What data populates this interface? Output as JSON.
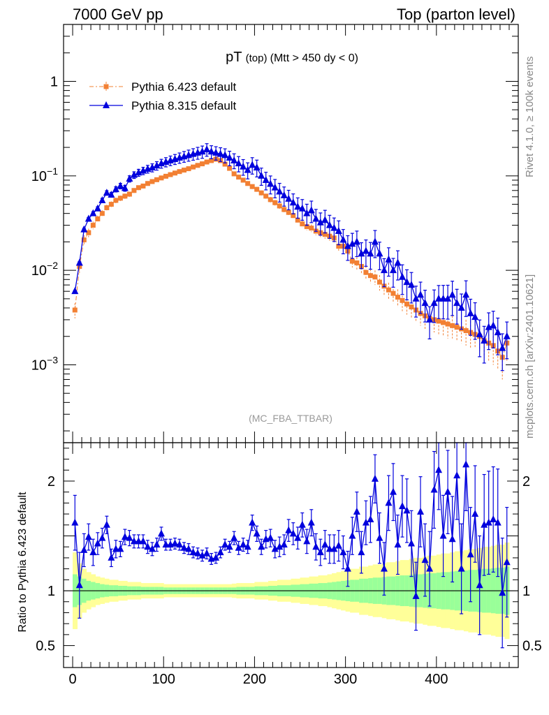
{
  "header": {
    "left": "7000 GeV pp",
    "right": "Top (parton level)"
  },
  "side_labels": {
    "rivet": "Rivet 4.1.0, ≥ 100k events",
    "mcplots": "mcplots.cern.ch [arXiv:2401.10621]"
  },
  "colors": {
    "pythia6": "#f28033",
    "pythia8": "#0000dd",
    "band_inner": "#99ff99",
    "band_outer": "#ffff99"
  },
  "chart_data": [
    {
      "type": "line",
      "title": "pT",
      "title_small": "(top)",
      "title_cut": "(Mtt > 450 dy < 0)",
      "watermark": "(MC_FBA_TTBAR)",
      "yscale": "log",
      "ylim": [
        0.00015,
        4
      ],
      "xlim": [
        -10,
        490
      ],
      "y_ticks": [
        {
          "value": 1,
          "label": "1"
        },
        {
          "value": 0.1,
          "label": "10^-1"
        },
        {
          "value": 0.01,
          "label": "10^-2"
        },
        {
          "value": 0.001,
          "label": "10^-3"
        }
      ],
      "legend_position": "top-left",
      "x": [
        2.5,
        7.5,
        12.5,
        17.5,
        22.5,
        27.5,
        32.5,
        37.5,
        42.5,
        47.5,
        52.5,
        57.5,
        62.5,
        67.5,
        72.5,
        77.5,
        82.5,
        87.5,
        92.5,
        97.5,
        102.5,
        107.5,
        112.5,
        117.5,
        122.5,
        127.5,
        132.5,
        137.5,
        142.5,
        147.5,
        152.5,
        157.5,
        162.5,
        167.5,
        172.5,
        177.5,
        182.5,
        187.5,
        192.5,
        197.5,
        202.5,
        207.5,
        212.5,
        217.5,
        222.5,
        227.5,
        232.5,
        237.5,
        242.5,
        247.5,
        252.5,
        257.5,
        262.5,
        267.5,
        272.5,
        277.5,
        282.5,
        287.5,
        292.5,
        297.5,
        302.5,
        307.5,
        312.5,
        317.5,
        322.5,
        327.5,
        332.5,
        337.5,
        342.5,
        347.5,
        352.5,
        357.5,
        362.5,
        367.5,
        372.5,
        377.5,
        382.5,
        387.5,
        392.5,
        397.5,
        402.5,
        407.5,
        412.5,
        417.5,
        422.5,
        427.5,
        432.5,
        437.5,
        442.5,
        447.5,
        452.5,
        457.5,
        462.5,
        467.5,
        472.5,
        477.5
      ],
      "series": [
        {
          "name": "Pythia 6.423 default",
          "marker": "square",
          "line": "dash-dot",
          "values": [
            0.0038,
            0.011,
            0.021,
            0.025,
            0.03,
            0.035,
            0.04,
            0.046,
            0.05,
            0.055,
            0.058,
            0.061,
            0.064,
            0.07,
            0.075,
            0.078,
            0.083,
            0.087,
            0.091,
            0.095,
            0.099,
            0.103,
            0.107,
            0.111,
            0.115,
            0.119,
            0.124,
            0.129,
            0.134,
            0.14,
            0.145,
            0.15,
            0.145,
            0.133,
            0.12,
            0.105,
            0.097,
            0.09,
            0.083,
            0.077,
            0.072,
            0.066,
            0.061,
            0.056,
            0.052,
            0.048,
            0.044,
            0.041,
            0.038,
            0.034,
            0.031,
            0.029,
            0.028,
            0.026,
            0.025,
            0.024,
            0.023,
            0.022,
            0.018,
            0.018,
            0.016,
            0.0125,
            0.012,
            0.011,
            0.0095,
            0.0088,
            0.0085,
            0.0075,
            0.0068,
            0.0062,
            0.0057,
            0.0052,
            0.0048,
            0.0044,
            0.0041,
            0.0038,
            0.0035,
            0.0033,
            0.0031,
            0.003,
            0.0029,
            0.0028,
            0.0027,
            0.0026,
            0.0025,
            0.0024,
            0.0023,
            0.0022,
            0.0021,
            0.002,
            0.0018,
            0.0017,
            0.0016,
            0.0014,
            0.0012,
            0.0017
          ],
          "errors": [
            0.0007,
            0.0016,
            0.0025,
            0.0026,
            0.0028,
            0.003,
            0.0032,
            0.0034,
            0.0036,
            0.0037,
            0.0038,
            0.0039,
            0.004,
            0.0042,
            0.0043,
            0.0044,
            0.0045,
            0.0046,
            0.0047,
            0.0048,
            0.0049,
            0.005,
            0.0051,
            0.0052,
            0.0053,
            0.0054,
            0.0055,
            0.0056,
            0.0057,
            0.0058,
            0.0059,
            0.006,
            0.0059,
            0.0057,
            0.0054,
            0.0051,
            0.0049,
            0.0047,
            0.0045,
            0.0044,
            0.0042,
            0.004,
            0.0038,
            0.0037,
            0.0035,
            0.0033,
            0.0032,
            0.0031,
            0.003,
            0.0028,
            0.0027,
            0.0026,
            0.0026,
            0.0025,
            0.0025,
            0.0024,
            0.0024,
            0.0023,
            0.0021,
            0.0021,
            0.002,
            0.0018,
            0.0018,
            0.0017,
            0.0016,
            0.0015,
            0.0015,
            0.0014,
            0.0013,
            0.0012,
            0.0012,
            0.0011,
            0.0011,
            0.001,
            0.001,
            0.0009,
            0.0009,
            0.0009,
            0.0008,
            0.0008,
            0.0008,
            0.0008,
            0.0008,
            0.0007,
            0.0007,
            0.0007,
            0.0007,
            0.0007,
            0.0006,
            0.0006,
            0.0006,
            0.0006,
            0.0006,
            0.0005,
            0.0005,
            0.0006
          ]
        },
        {
          "name": "Pythia 8.315 default",
          "marker": "triangle",
          "line": "solid",
          "values": [
            0.006,
            0.012,
            0.027,
            0.035,
            0.04,
            0.045,
            0.055,
            0.066,
            0.063,
            0.072,
            0.078,
            0.074,
            0.093,
            0.102,
            0.108,
            0.113,
            0.118,
            0.122,
            0.128,
            0.135,
            0.14,
            0.145,
            0.15,
            0.155,
            0.16,
            0.165,
            0.17,
            0.175,
            0.18,
            0.19,
            0.18,
            0.175,
            0.17,
            0.165,
            0.155,
            0.145,
            0.135,
            0.125,
            0.115,
            0.13,
            0.122,
            0.1,
            0.09,
            0.082,
            0.075,
            0.068,
            0.062,
            0.057,
            0.052,
            0.047,
            0.045,
            0.04,
            0.043,
            0.035,
            0.032,
            0.034,
            0.03,
            0.028,
            0.026,
            0.021,
            0.018,
            0.019,
            0.02,
            0.015,
            0.016,
            0.015,
            0.02,
            0.015,
            0.01,
            0.013,
            0.01,
            0.012,
            0.0085,
            0.0075,
            0.007,
            0.005,
            0.0055,
            0.0045,
            0.003,
            0.0045,
            0.005,
            0.005,
            0.005,
            0.0055,
            0.0045,
            0.004,
            0.0055,
            0.0035,
            0.0032,
            0.0021,
            0.0018,
            0.0025,
            0.0026,
            0.0022,
            0.0015,
            0.002
          ]
        }
      ]
    },
    {
      "type": "line",
      "ylabel": "Ratio to Pythia 6.423 default",
      "ylim": [
        0.3,
        2.35
      ],
      "y_ticks": [
        {
          "value": 2,
          "label": "2"
        },
        {
          "value": 1,
          "label": "1"
        },
        {
          "value": 0.5,
          "label": "0.5"
        }
      ],
      "x_ticks": [
        {
          "value": 0,
          "label": "0"
        },
        {
          "value": 100,
          "label": "100"
        },
        {
          "value": 200,
          "label": "200"
        },
        {
          "value": 300,
          "label": "300"
        },
        {
          "value": 400,
          "label": "400"
        }
      ],
      "ratio": [
        1.62,
        1.05,
        1.37,
        1.49,
        1.35,
        1.43,
        1.48,
        1.6,
        1.3,
        1.38,
        1.38,
        1.49,
        1.48,
        1.45,
        1.45,
        1.45,
        1.4,
        1.38,
        1.42,
        1.52,
        1.42,
        1.42,
        1.43,
        1.42,
        1.39,
        1.38,
        1.35,
        1.34,
        1.32,
        1.34,
        1.29,
        1.3,
        1.35,
        1.42,
        1.4,
        1.48,
        1.39,
        1.42,
        1.4,
        1.62,
        1.52,
        1.4,
        1.47,
        1.48,
        1.38,
        1.4,
        1.42,
        1.55,
        1.52,
        1.48,
        1.6,
        1.45,
        1.62,
        1.4,
        1.35,
        1.42,
        1.38,
        1.38,
        1.41,
        1.35,
        1.2,
        1.5,
        1.72,
        1.35,
        1.62,
        1.65,
        2.02,
        1.48,
        1.2,
        1.8,
        1.9,
        1.42,
        1.77,
        1.73,
        1.43,
        0.95,
        1.72,
        1.28,
        1.2,
        1.92,
        2.1,
        1.5,
        1.9,
        1.47,
        2.05,
        1.2,
        2.15,
        1.33,
        1.7,
        1.05,
        1.6,
        1.62,
        1.65,
        1.62,
        0.98,
        1.26
      ],
      "ratio_errors": [
        0.25,
        0.3,
        0.15,
        0.12,
        0.12,
        0.1,
        0.09,
        0.08,
        0.08,
        0.08,
        0.07,
        0.07,
        0.07,
        0.06,
        0.06,
        0.06,
        0.06,
        0.06,
        0.06,
        0.06,
        0.05,
        0.05,
        0.05,
        0.05,
        0.05,
        0.05,
        0.05,
        0.05,
        0.05,
        0.05,
        0.05,
        0.05,
        0.05,
        0.05,
        0.05,
        0.06,
        0.06,
        0.06,
        0.06,
        0.07,
        0.07,
        0.07,
        0.08,
        0.08,
        0.08,
        0.09,
        0.09,
        0.1,
        0.1,
        0.1,
        0.11,
        0.11,
        0.12,
        0.12,
        0.12,
        0.13,
        0.13,
        0.13,
        0.14,
        0.15,
        0.16,
        0.17,
        0.18,
        0.19,
        0.2,
        0.21,
        0.22,
        0.23,
        0.24,
        0.25,
        0.26,
        0.27,
        0.28,
        0.29,
        0.3,
        0.31,
        0.32,
        0.33,
        0.34,
        0.35,
        0.36,
        0.37,
        0.38,
        0.39,
        0.4,
        0.41,
        0.42,
        0.43,
        0.44,
        0.45,
        0.46,
        0.47,
        0.48,
        0.49,
        0.5,
        0.5
      ],
      "band_inner_halfwidth": [
        0.15,
        0.13,
        0.11,
        0.09,
        0.08,
        0.07,
        0.06,
        0.055,
        0.05,
        0.05,
        0.045,
        0.045,
        0.04,
        0.04,
        0.04,
        0.035,
        0.035,
        0.035,
        0.035,
        0.035,
        0.03,
        0.03,
        0.03,
        0.03,
        0.03,
        0.03,
        0.03,
        0.03,
        0.03,
        0.03,
        0.03,
        0.03,
        0.03,
        0.03,
        0.03,
        0.03,
        0.035,
        0.035,
        0.035,
        0.035,
        0.04,
        0.04,
        0.04,
        0.045,
        0.045,
        0.05,
        0.05,
        0.05,
        0.055,
        0.055,
        0.06,
        0.06,
        0.065,
        0.065,
        0.07,
        0.07,
        0.075,
        0.08,
        0.085,
        0.09,
        0.095,
        0.1,
        0.1,
        0.11,
        0.11,
        0.115,
        0.12,
        0.12,
        0.125,
        0.13,
        0.13,
        0.135,
        0.14,
        0.14,
        0.145,
        0.15,
        0.15,
        0.155,
        0.16,
        0.16,
        0.165,
        0.17,
        0.17,
        0.175,
        0.18,
        0.18,
        0.185,
        0.19,
        0.19,
        0.195,
        0.2,
        0.2,
        0.205,
        0.21,
        0.21,
        0.22
      ],
      "band_outer_halfwidth": [
        0.35,
        0.25,
        0.2,
        0.17,
        0.15,
        0.13,
        0.12,
        0.11,
        0.1,
        0.1,
        0.09,
        0.09,
        0.08,
        0.08,
        0.08,
        0.07,
        0.07,
        0.07,
        0.07,
        0.07,
        0.06,
        0.06,
        0.06,
        0.06,
        0.06,
        0.06,
        0.06,
        0.06,
        0.06,
        0.06,
        0.06,
        0.06,
        0.06,
        0.06,
        0.06,
        0.065,
        0.07,
        0.07,
        0.07,
        0.07,
        0.08,
        0.08,
        0.08,
        0.09,
        0.09,
        0.1,
        0.1,
        0.1,
        0.11,
        0.11,
        0.12,
        0.12,
        0.13,
        0.13,
        0.14,
        0.14,
        0.15,
        0.16,
        0.17,
        0.18,
        0.19,
        0.2,
        0.2,
        0.22,
        0.22,
        0.23,
        0.24,
        0.24,
        0.25,
        0.26,
        0.26,
        0.27,
        0.28,
        0.28,
        0.29,
        0.3,
        0.3,
        0.31,
        0.32,
        0.32,
        0.33,
        0.34,
        0.34,
        0.35,
        0.36,
        0.36,
        0.37,
        0.38,
        0.38,
        0.39,
        0.4,
        0.4,
        0.41,
        0.42,
        0.42,
        0.44
      ]
    }
  ]
}
